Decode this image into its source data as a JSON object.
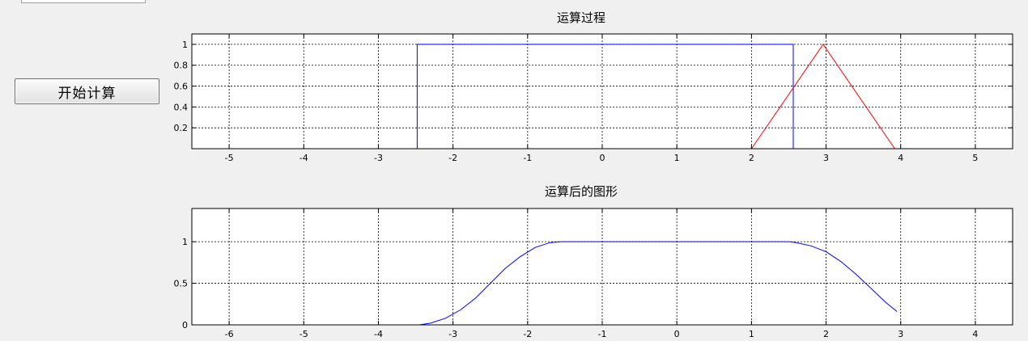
{
  "controls": {
    "start_button_label": "开始计算"
  },
  "chart_data": [
    {
      "type": "line",
      "title": "运算过程",
      "xlabel": "",
      "ylabel": "",
      "xlim": [
        -5.5,
        5.5
      ],
      "ylim": [
        0,
        1.1
      ],
      "xticks": [
        -5,
        -4,
        -3,
        -2,
        -1,
        0,
        1,
        2,
        3,
        4,
        5
      ],
      "yticks": [
        0.2,
        0.4,
        0.6,
        0.8,
        1
      ],
      "ytick_labels": [
        "0.2",
        "0.4",
        "0.6",
        "0.8",
        "1"
      ],
      "grid": true,
      "series": [
        {
          "color": "#0000ff",
          "x": [
            -2.48,
            -2.48,
            2.56,
            2.56
          ],
          "y": [
            0,
            1,
            1,
            0
          ]
        },
        {
          "color": "#ff0000",
          "x": [
            2.0,
            2.96,
            3.92
          ],
          "y": [
            0,
            1,
            0
          ]
        }
      ]
    },
    {
      "type": "line",
      "title": "运算后的图形",
      "xlabel": "",
      "ylabel": "",
      "xlim": [
        -6.5,
        4.5
      ],
      "ylim": [
        0,
        1.4
      ],
      "xticks": [
        -6,
        -5,
        -4,
        -3,
        -2,
        -1,
        0,
        1,
        2,
        3,
        4
      ],
      "yticks": [
        0,
        0.5,
        1
      ],
      "ytick_labels": [
        "0",
        "0.5",
        "1"
      ],
      "grid": true,
      "series": [
        {
          "color": "#0000ff",
          "x": [
            -6.5,
            -3.45,
            -3.3,
            -3.1,
            -2.9,
            -2.7,
            -2.5,
            -2.3,
            -2.1,
            -1.9,
            -1.7,
            -1.55,
            1.5,
            1.6,
            1.8,
            2.0,
            2.2,
            2.4,
            2.6,
            2.8,
            2.95
          ],
          "y": [
            0,
            0,
            0.02,
            0.08,
            0.18,
            0.32,
            0.5,
            0.68,
            0.82,
            0.93,
            0.99,
            1,
            1,
            0.99,
            0.95,
            0.88,
            0.76,
            0.61,
            0.44,
            0.27,
            0.16
          ]
        }
      ]
    }
  ]
}
